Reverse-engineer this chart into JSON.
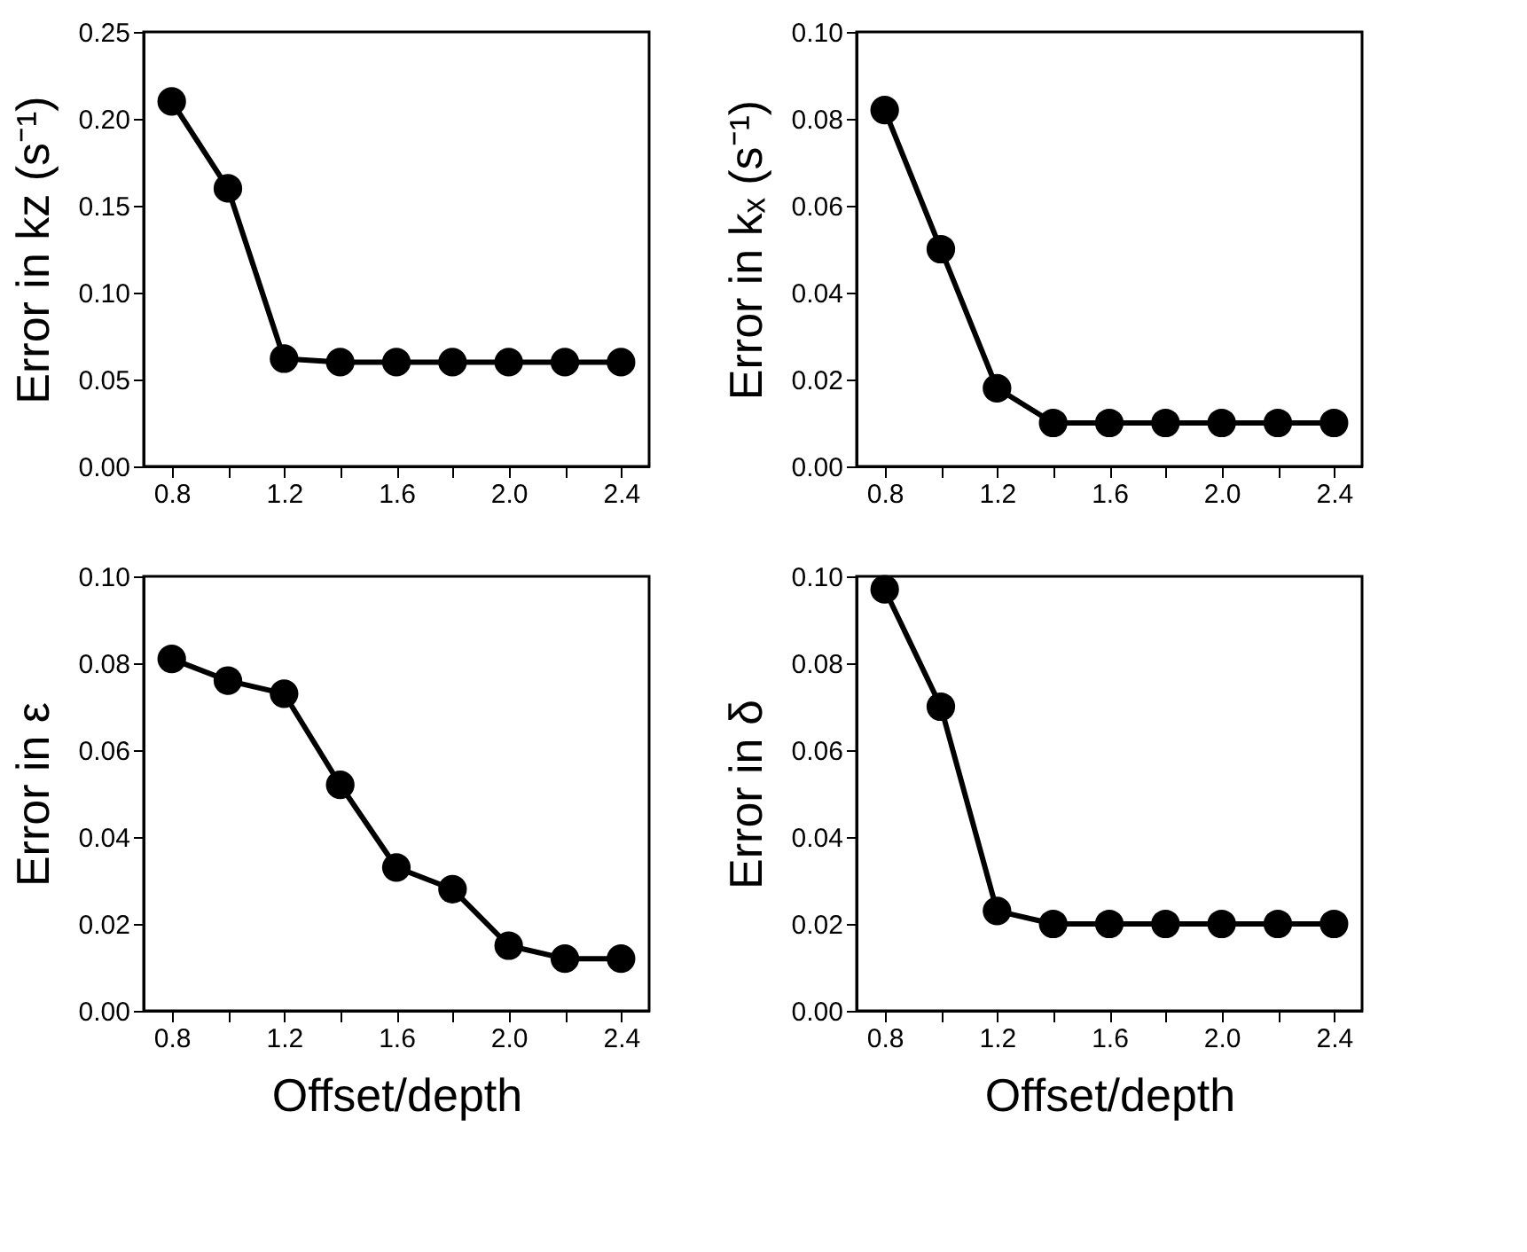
{
  "chart_data": [
    {
      "type": "line",
      "marker": "circle",
      "grid": false,
      "ylabel": "Error in kz (s⁻¹)",
      "x": [
        0.8,
        1.0,
        1.2,
        1.4,
        1.6,
        1.8,
        2.0,
        2.2,
        2.4
      ],
      "xlim": [
        0.7,
        2.5
      ],
      "xticks": [
        0.8,
        {
          "value": 1.0,
          "label": null
        },
        1.2,
        {
          "value": 1.4,
          "label": null
        },
        1.6,
        {
          "value": 1.8,
          "label": null
        },
        {
          "value": 2.0,
          "label": "2.0"
        },
        {
          "value": 2.2,
          "label": null
        },
        2.4
      ],
      "ylim": [
        0,
        0.25
      ],
      "yticks": [
        {
          "value": 0,
          "label": "0.00"
        },
        0.05,
        {
          "value": 0.1,
          "label": "0.10"
        },
        0.15,
        {
          "value": 0.2,
          "label": "0.20"
        },
        0.25
      ],
      "series": [
        {
          "color": "#000000",
          "values": [
            0.21,
            0.16,
            0.062,
            0.06,
            0.06,
            0.06,
            0.06,
            0.06,
            0.06
          ]
        }
      ]
    },
    {
      "type": "line",
      "marker": "circle",
      "grid": false,
      "ylabel": "Error in kₓ (s⁻¹)",
      "x": [
        0.8,
        1.0,
        1.2,
        1.4,
        1.6,
        1.8,
        2.0,
        2.2,
        2.4
      ],
      "xlim": [
        0.7,
        2.5
      ],
      "xticks": [
        0.8,
        {
          "value": 1.0,
          "label": null
        },
        1.2,
        {
          "value": 1.4,
          "label": null
        },
        1.6,
        {
          "value": 1.8,
          "label": null
        },
        {
          "value": 2.0,
          "label": "2.0"
        },
        {
          "value": 2.2,
          "label": null
        },
        2.4
      ],
      "ylim": [
        0,
        0.1
      ],
      "yticks": [
        {
          "value": 0,
          "label": "0.00"
        },
        0.02,
        0.04,
        0.06,
        0.08,
        {
          "value": 0.1,
          "label": "0.10"
        }
      ],
      "series": [
        {
          "color": "#000000",
          "values": [
            0.082,
            0.05,
            0.018,
            0.01,
            0.01,
            0.01,
            0.01,
            0.01,
            0.01
          ]
        }
      ]
    },
    {
      "type": "line",
      "marker": "circle",
      "grid": false,
      "xlabel": "Offset/depth",
      "ylabel": "Error in ε",
      "x": [
        0.8,
        1.0,
        1.2,
        1.4,
        1.6,
        1.8,
        2.0,
        2.2,
        2.4
      ],
      "xlim": [
        0.7,
        2.5
      ],
      "xticks": [
        0.8,
        {
          "value": 1.0,
          "label": null
        },
        1.2,
        {
          "value": 1.4,
          "label": null
        },
        1.6,
        {
          "value": 1.8,
          "label": null
        },
        {
          "value": 2.0,
          "label": "2.0"
        },
        {
          "value": 2.2,
          "label": null
        },
        2.4
      ],
      "ylim": [
        0,
        0.1
      ],
      "yticks": [
        {
          "value": 0,
          "label": "0.00"
        },
        0.02,
        0.04,
        0.06,
        0.08,
        {
          "value": 0.1,
          "label": "0.10"
        }
      ],
      "series": [
        {
          "color": "#000000",
          "values": [
            0.081,
            0.076,
            0.073,
            0.052,
            0.033,
            0.028,
            0.015,
            0.012,
            0.012
          ]
        }
      ]
    },
    {
      "type": "line",
      "marker": "circle",
      "grid": false,
      "xlabel": "Offset/depth",
      "ylabel": "Error in δ",
      "x": [
        0.8,
        1.0,
        1.2,
        1.4,
        1.6,
        1.8,
        2.0,
        2.2,
        2.4
      ],
      "xlim": [
        0.7,
        2.5
      ],
      "xticks": [
        0.8,
        {
          "value": 1.0,
          "label": null
        },
        1.2,
        {
          "value": 1.4,
          "label": null
        },
        1.6,
        {
          "value": 1.8,
          "label": null
        },
        {
          "value": 2.0,
          "label": "2.0"
        },
        {
          "value": 2.2,
          "label": null
        },
        2.4
      ],
      "ylim": [
        0,
        0.1
      ],
      "yticks": [
        {
          "value": 0,
          "label": "0.00"
        },
        0.02,
        0.04,
        0.06,
        0.08,
        {
          "value": 0.1,
          "label": "0.10"
        }
      ],
      "series": [
        {
          "color": "#000000",
          "values": [
            0.097,
            0.07,
            0.023,
            0.02,
            0.02,
            0.02,
            0.02,
            0.02,
            0.02
          ]
        }
      ]
    }
  ]
}
